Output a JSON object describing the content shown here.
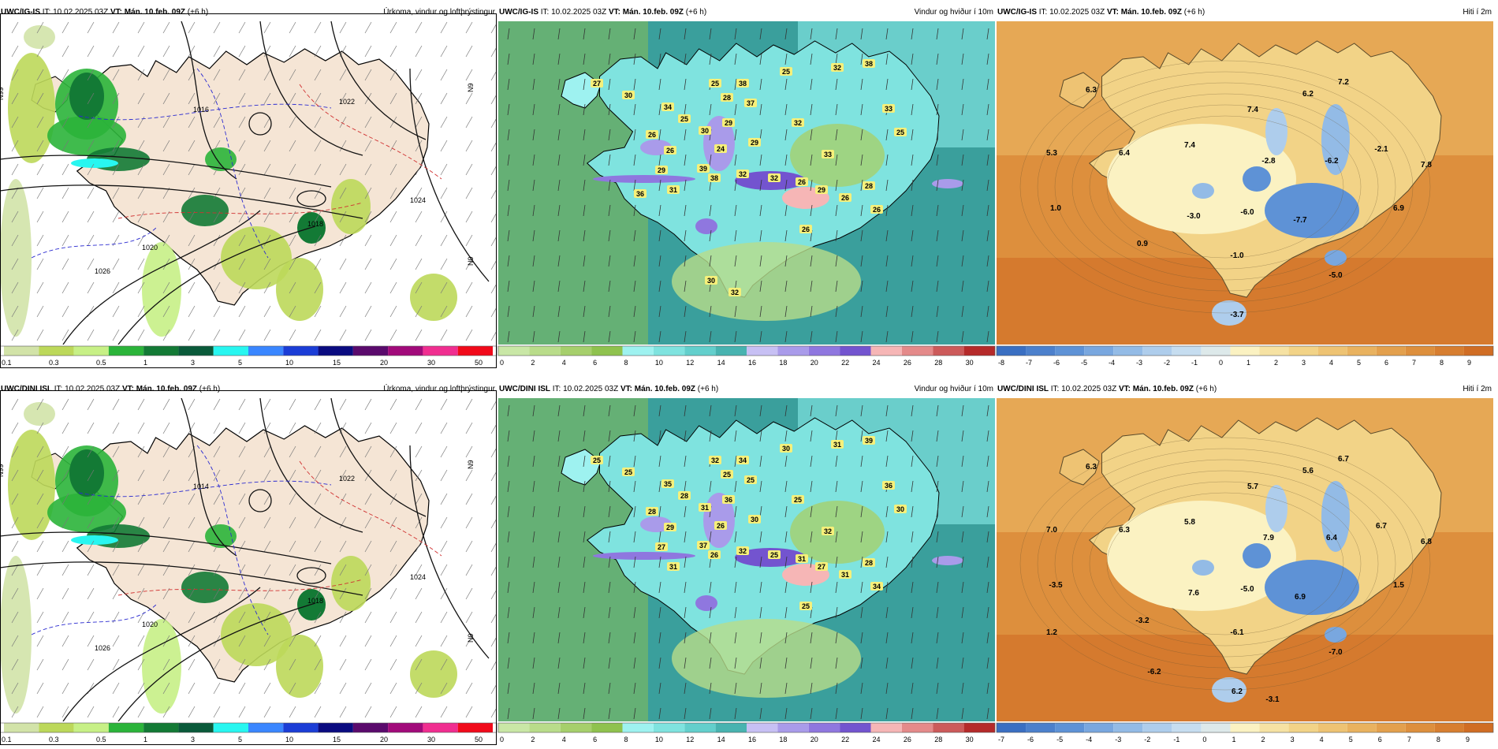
{
  "colors": {
    "precip": [
      "#d2e3a8",
      "#bcd85a",
      "#c7f086",
      "#2bb43a",
      "#137a35",
      "#0a5a3a",
      "#28f6f0",
      "#3a86ff",
      "#1b3dd6",
      "#0a0b80",
      "#5a0a6c",
      "#a10a7a",
      "#f02e90",
      "#f10a1a"
    ],
    "wind": [
      "#c9e7a6",
      "#b9dc8a",
      "#a6cf6c",
      "#8fc24e",
      "#9ef2f0",
      "#7fe3df",
      "#63cfcc",
      "#48b3b0",
      "#c7c0f4",
      "#a99bea",
      "#8f77df",
      "#7354cf",
      "#f6b6b6",
      "#e48a8a",
      "#cc5a5a",
      "#b52a2a"
    ],
    "temp": [
      "#3a6fc2",
      "#4c80cc",
      "#5e92d6",
      "#79a7df",
      "#93bbe6",
      "#aecdec",
      "#c6ddf0",
      "#dde9ea",
      "#fbf2c2",
      "#f6e2a3",
      "#f2d387",
      "#eec373",
      "#e9b25f",
      "#e3a04d",
      "#dd8f3d",
      "#d77e30",
      "#d06d24"
    ],
    "land": "#f5e5d5",
    "sea_wind": "#3a9f9c"
  },
  "panels": [
    {
      "model": "UWC/IG-IS",
      "run_label": "IT:",
      "run": "10.02.2025 03Z",
      "valid_label": "VT:",
      "valid": "Mán. 10.feb. 09Z",
      "lead": "(+6 h)",
      "title": "Úrkoma, vindur og loftþrýstingur",
      "type": "precip",
      "scale": [
        "0.1",
        "0.3",
        "0.5",
        "1",
        "3",
        "5",
        "10",
        "15",
        "20",
        "30",
        "50"
      ],
      "isobars": [
        "1016",
        "1018",
        "1020",
        "1022",
        "1024",
        "1026"
      ],
      "grid_labels": [
        "N99",
        "N9",
        "N9"
      ]
    },
    {
      "model": "UWC/IG-IS",
      "run_label": "IT:",
      "run": "10.02.2025 03Z",
      "valid_label": "VT:",
      "valid": "Mán. 10.feb. 09Z",
      "lead": "(+6 h)",
      "title": "Vindur og hviður í 10m",
      "type": "wind",
      "scale": [
        "0",
        "2",
        "4",
        "6",
        "8",
        "10",
        "12",
        "14",
        "16",
        "18",
        "20",
        "22",
        "24",
        "26",
        "28",
        "30"
      ],
      "gusts": [
        "27",
        "30",
        "25",
        "38",
        "28",
        "25",
        "37",
        "29",
        "34",
        "25",
        "26",
        "30",
        "26",
        "29",
        "24",
        "31",
        "29",
        "32",
        "32",
        "33",
        "33",
        "25",
        "38",
        "39",
        "38",
        "32",
        "32",
        "26",
        "29",
        "26",
        "28",
        "26",
        "26",
        "30",
        "32",
        "36"
      ]
    },
    {
      "model": "UWC/IG-IS",
      "run_label": "IT:",
      "run": "10.02.2025 03Z",
      "valid_label": "VT:",
      "valid": "Mán. 10.feb. 09Z",
      "lead": "(+6 h)",
      "title": "Hiti í 2m",
      "type": "temp",
      "scale": [
        "-8",
        "-7",
        "-6",
        "-5",
        "-4",
        "-3",
        "-2",
        "-1",
        "0",
        "1",
        "2",
        "3",
        "4",
        "5",
        "6",
        "7",
        "8",
        "9"
      ],
      "temps": [
        "6.3",
        "7.2",
        "6.2",
        "7.4",
        "5.3",
        "6.4",
        "7.4",
        "-2.8",
        "-6.2",
        "-2.1",
        "7.8",
        "1.0",
        "-3.0",
        "-6.0",
        "-7.7",
        "6.9",
        "0.9",
        "-1.0",
        "-5.0",
        "-3.7"
      ]
    },
    {
      "model": "UWC/DINI ISL",
      "run_label": "IT:",
      "run": "10.02.2025 03Z",
      "valid_label": "VT:",
      "valid": "Mán. 10.feb. 09Z",
      "lead": "(+6 h)",
      "title": "Úrkoma, vindur og loftþrýstingur",
      "type": "precip",
      "scale": [
        "0.1",
        "0.3",
        "0.5",
        "1",
        "3",
        "5",
        "10",
        "15",
        "20",
        "30",
        "50"
      ],
      "isobars": [
        "1014",
        "1018",
        "1020",
        "1022",
        "1024",
        "1026"
      ],
      "grid_labels": [
        "N99",
        "N9",
        "N9"
      ]
    },
    {
      "model": "UWC/DINI ISL",
      "run_label": "IT:",
      "run": "10.02.2025 03Z",
      "valid_label": "VT:",
      "valid": "Mán. 10.feb. 09Z",
      "lead": "(+6 h)",
      "title": "Vindur og hviður í 10m",
      "type": "wind",
      "scale": [
        "0",
        "2",
        "4",
        "6",
        "8",
        "10",
        "12",
        "14",
        "16",
        "18",
        "20",
        "22",
        "24",
        "26",
        "28",
        "30"
      ],
      "gusts": [
        "25",
        "25",
        "32",
        "34",
        "25",
        "30",
        "25",
        "36",
        "35",
        "28",
        "28",
        "31",
        "29",
        "27",
        "26",
        "31",
        "30",
        "25",
        "31",
        "32",
        "36",
        "30",
        "39",
        "37",
        "26",
        "32",
        "25",
        "31",
        "27",
        "31",
        "28",
        "34",
        "25"
      ]
    },
    {
      "model": "UWC/DINI ISL",
      "run_label": "IT:",
      "run": "10.02.2025 03Z",
      "valid_label": "VT:",
      "valid": "Mán. 10.feb. 09Z",
      "lead": "(+6 h)",
      "title": "Hiti í 2m",
      "type": "temp",
      "scale": [
        "-7",
        "-6",
        "-5",
        "-4",
        "-3",
        "-2",
        "-1",
        "0",
        "1",
        "2",
        "3",
        "4",
        "5",
        "6",
        "7",
        "8",
        "9"
      ],
      "temps": [
        "6.3",
        "6.7",
        "5.6",
        "5.7",
        "7.0",
        "6.3",
        "5.8",
        "7.9",
        "6.4",
        "6.7",
        "6.8",
        "-3.5",
        "7.6",
        "-5.0",
        "6.9",
        "1.5",
        "-3.2",
        "-6.1",
        "-7.0",
        "6.2",
        "1.2",
        "-6.2",
        "-3.1"
      ]
    }
  ]
}
